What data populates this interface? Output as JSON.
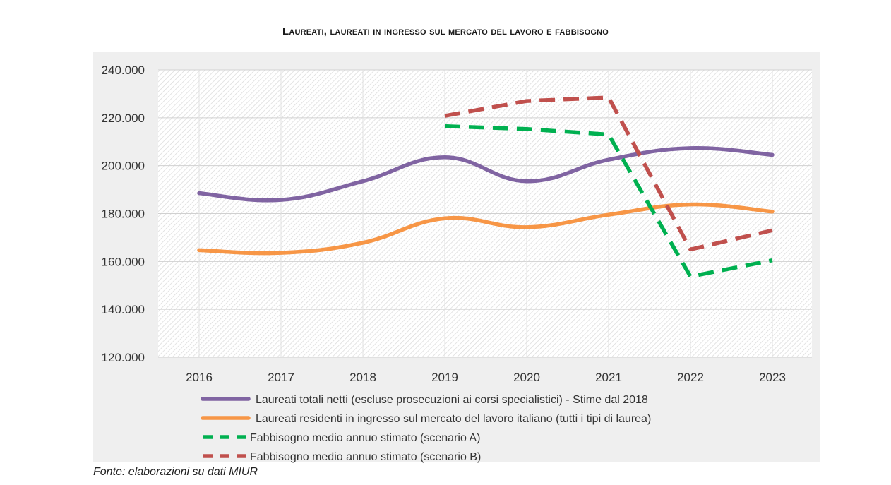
{
  "chart_data": {
    "type": "line",
    "title": "Laureati, laureati in ingresso sul mercato del lavoro e fabbisogno",
    "categories": [
      "2016",
      "2017",
      "2018",
      "2019",
      "2020",
      "2021",
      "2022",
      "2023"
    ],
    "ylim": [
      120000,
      240000
    ],
    "yticks": [
      "120.000",
      "140.000",
      "160.000",
      "180.000",
      "200.000",
      "220.000",
      "240.000"
    ],
    "ytick_values": [
      120000,
      140000,
      160000,
      180000,
      200000,
      220000,
      240000
    ],
    "grid": true,
    "legend_position": "bottom",
    "series": [
      {
        "name": "Laureati totali netti (escluse prosecuzioni ai corsi specialistici) - Stime dal 2018",
        "color": "#8064a2",
        "dashed": false,
        "values": [
          188500,
          185700,
          193500,
          203500,
          193500,
          202500,
          207300,
          204500
        ]
      },
      {
        "name": "Laureati residenti in ingresso sul mercato del lavoro italiano (tutti i tipi di laurea)",
        "color": "#f79646",
        "dashed": false,
        "values": [
          164700,
          163600,
          167800,
          178000,
          174300,
          179500,
          183800,
          180800
        ]
      },
      {
        "name": "Fabbisogno medio annuo stimato (scenario A)",
        "color": "#00b050",
        "dashed": true,
        "values": [
          null,
          null,
          null,
          216500,
          215300,
          213000,
          153700,
          160500
        ]
      },
      {
        "name": "Fabbisogno medio annuo stimato (scenario B)",
        "color": "#c0504d",
        "dashed": true,
        "values": [
          null,
          null,
          null,
          220800,
          227000,
          228500,
          165000,
          173000
        ]
      }
    ]
  },
  "source_note": "Fonte: elaborazioni su dati MIUR"
}
